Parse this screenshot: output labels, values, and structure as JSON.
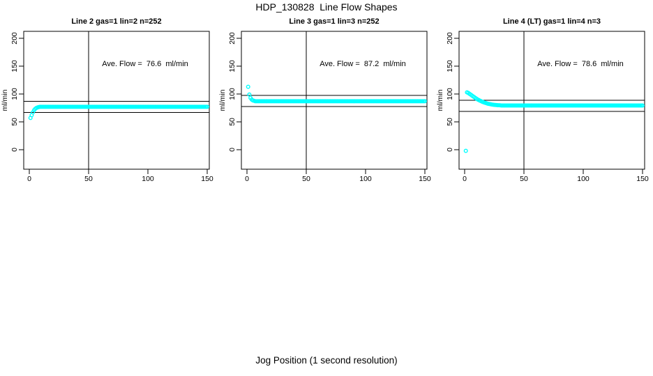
{
  "chart_data": {
    "type": "scatter",
    "title": "HDP_130828  Line Flow Shapes",
    "xlabel": "Jog Position (1 second resolution)",
    "ylabel": "ml/min",
    "point_color": "#00FFFF",
    "axis_color": "#000000",
    "xticks": [
      0,
      50,
      100,
      150
    ],
    "yticks": [
      0,
      50,
      100,
      150,
      200
    ],
    "xlim": [
      0,
      150
    ],
    "ylim": [
      0,
      200
    ],
    "grid": false,
    "vline_x": 50,
    "panels": [
      {
        "title": "Line 2 gas=1 lin=2 n=252",
        "annotation": "Ave. Flow =  76.6  ml/min",
        "ave_flow": 76.6,
        "n": 252,
        "hlines": [
          86.6,
          66.6
        ],
        "points": [
          [
            1,
            57
          ],
          [
            2,
            62
          ],
          [
            3,
            67
          ],
          [
            4,
            71
          ],
          [
            5,
            73.5
          ],
          [
            6,
            75
          ],
          [
            7,
            76
          ],
          [
            8,
            76.5
          ]
        ],
        "plateau": {
          "from": 9,
          "to": 150,
          "y": 77
        }
      },
      {
        "title": "Line 3 gas=1 lin=3 n=252",
        "annotation": "Ave. Flow =  87.2  ml/min",
        "ave_flow": 87.2,
        "n": 252,
        "hlines": [
          97.2,
          77.2
        ],
        "points": [
          [
            1,
            113
          ],
          [
            2,
            99
          ],
          [
            3,
            93
          ],
          [
            4,
            90
          ],
          [
            5,
            88.5
          ],
          [
            6,
            87.8
          ]
        ],
        "plateau": {
          "from": 7,
          "to": 150,
          "y": 87
        }
      },
      {
        "title": "Line 4 (LT) gas=1 lin=4 n=3",
        "annotation": "Ave. Flow =  78.6  ml/min",
        "ave_flow": 78.6,
        "n": 3,
        "hlines": [
          88.6,
          68.6
        ],
        "points": [
          [
            1,
            -2
          ],
          [
            2,
            103
          ],
          [
            3,
            102
          ],
          [
            4,
            100.5
          ],
          [
            5,
            99
          ],
          [
            6,
            97.5
          ],
          [
            7,
            96
          ],
          [
            8,
            94.5
          ],
          [
            9,
            93
          ],
          [
            10,
            91.5
          ],
          [
            11,
            90.2
          ],
          [
            12,
            89
          ],
          [
            13,
            88
          ],
          [
            14,
            87
          ],
          [
            15,
            86
          ],
          [
            16,
            85.2
          ],
          [
            17,
            84.4
          ],
          [
            18,
            83.7
          ],
          [
            19,
            83
          ],
          [
            20,
            82.4
          ],
          [
            21,
            82
          ],
          [
            22,
            81.5
          ],
          [
            23,
            81.1
          ],
          [
            24,
            80.8
          ],
          [
            25,
            80.5
          ],
          [
            26,
            80.3
          ],
          [
            27,
            80.1
          ],
          [
            28,
            79.9
          ],
          [
            29,
            79.8
          ],
          [
            30,
            79.7
          ]
        ],
        "plateau": {
          "from": 31,
          "to": 150,
          "y": 79.3
        }
      }
    ]
  }
}
